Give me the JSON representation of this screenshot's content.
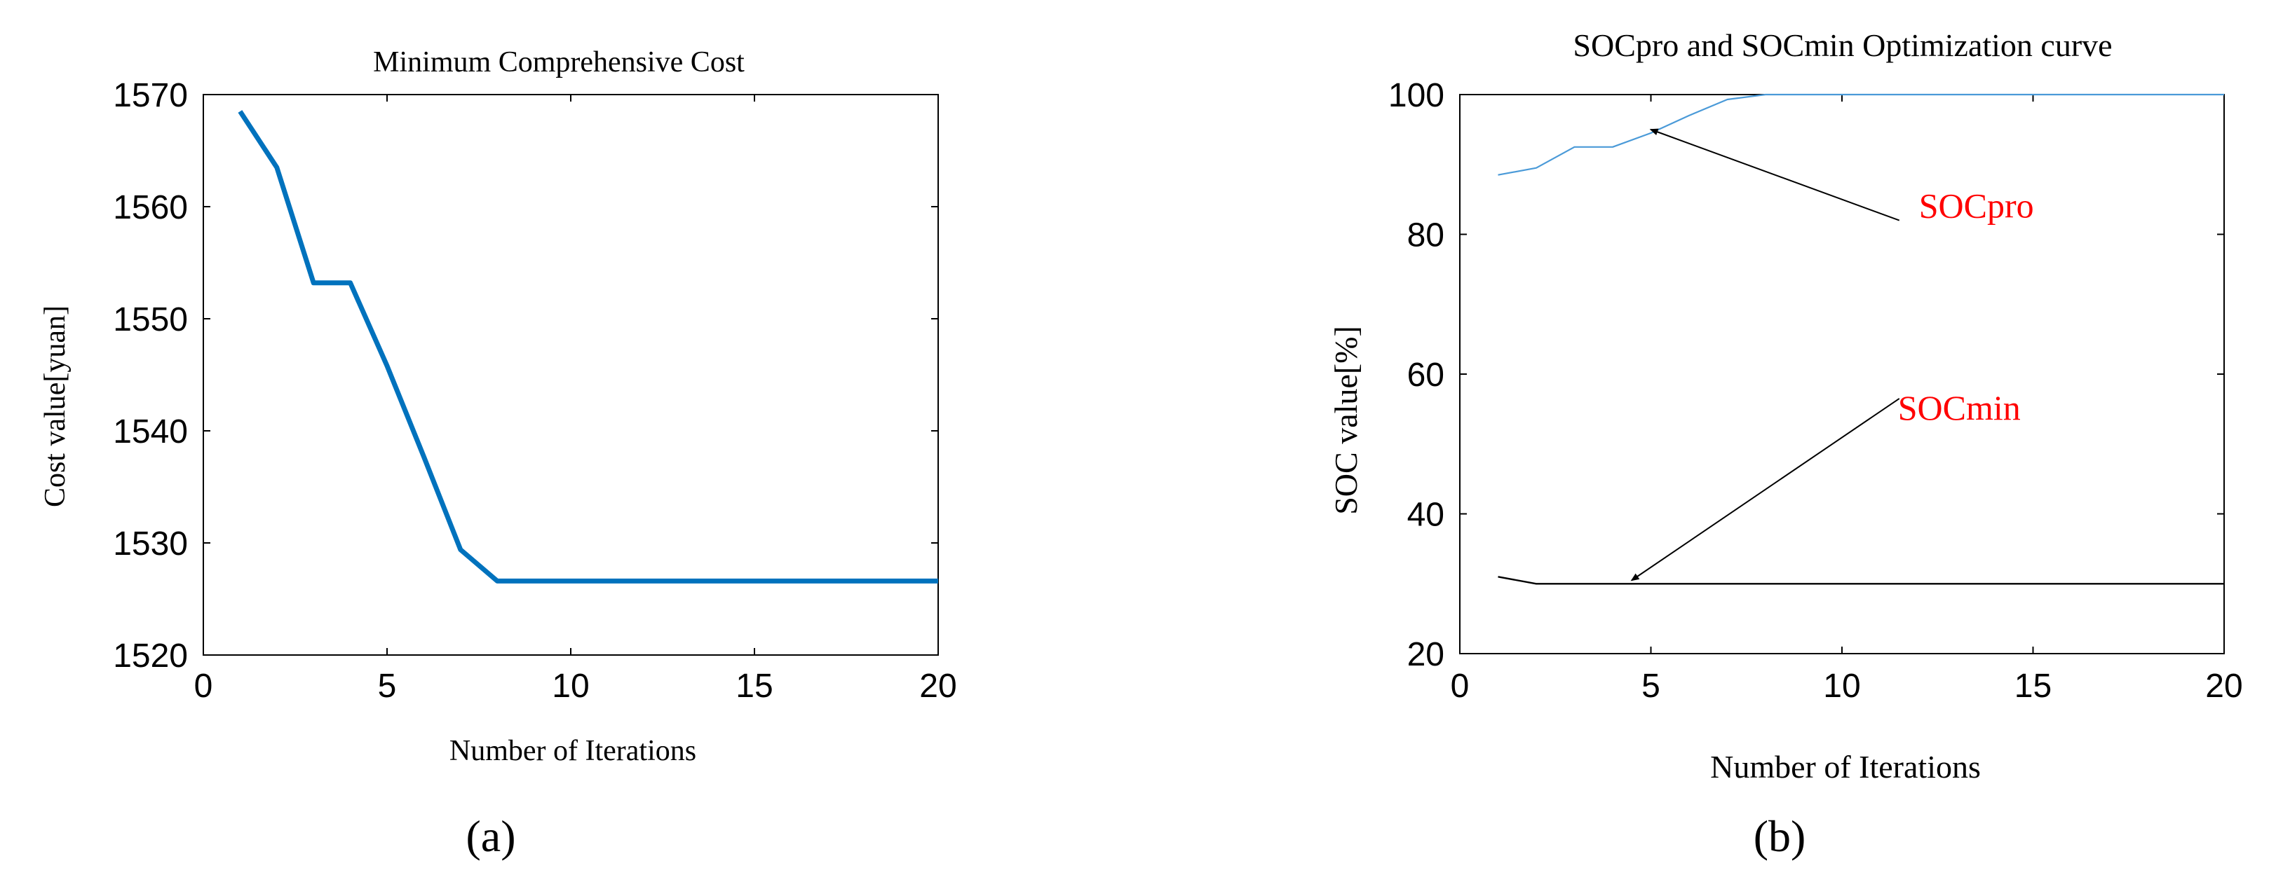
{
  "colors": {
    "series_a": "#0072BD",
    "socpro": "#4A9AD8",
    "socmin": "#000000",
    "annotation_text": "#FF0000",
    "axis": "#000000"
  },
  "chart_data": [
    {
      "type": "line",
      "panel_label": "(a)",
      "title": "Minimum Comprehensive Cost",
      "xlabel": "Number of Iterations",
      "ylabel": "Cost value[yuan]",
      "xlim": [
        0,
        20
      ],
      "ylim": [
        1520,
        1570
      ],
      "xticks": [
        0,
        5,
        10,
        15,
        20
      ],
      "yticks": [
        1520,
        1530,
        1540,
        1550,
        1560,
        1570
      ],
      "grid": false,
      "series": [
        {
          "name": "Comprehensive cost",
          "color": "#0072BD",
          "x": [
            1,
            2,
            3,
            4,
            5,
            6,
            7,
            8,
            9,
            10,
            11,
            12,
            13,
            14,
            15,
            16,
            17,
            18,
            19,
            20
          ],
          "values": [
            1568.5,
            1563.5,
            1553.2,
            1553.2,
            1545.8,
            1537.7,
            1529.4,
            1526.6,
            1526.6,
            1526.6,
            1526.6,
            1526.6,
            1526.6,
            1526.6,
            1526.6,
            1526.6,
            1526.6,
            1526.6,
            1526.6,
            1526.6
          ]
        }
      ]
    },
    {
      "type": "line",
      "panel_label": "(b)",
      "title": "SOCpro and SOCmin Optimization curve",
      "xlabel": "Number of Iterations",
      "ylabel": "SOC value[%]",
      "xlim": [
        0,
        20
      ],
      "ylim": [
        20,
        100
      ],
      "xticks": [
        0,
        5,
        10,
        15,
        20
      ],
      "yticks": [
        20,
        40,
        60,
        80,
        100
      ],
      "grid": false,
      "series": [
        {
          "name": "SOCpro",
          "color": "#4A9AD8",
          "x": [
            1,
            2,
            3,
            4,
            5,
            6,
            7,
            8,
            9,
            10,
            11,
            12,
            13,
            14,
            15,
            16,
            17,
            18,
            19,
            20
          ],
          "values": [
            88.5,
            89.5,
            92.5,
            92.5,
            94.5,
            97.0,
            99.3,
            100,
            100,
            100,
            100,
            100,
            100,
            100,
            100,
            100,
            100,
            100,
            100,
            100
          ]
        },
        {
          "name": "SOCmin",
          "color": "#000000",
          "x": [
            1,
            2,
            3,
            4,
            5,
            6,
            7,
            8,
            9,
            10,
            11,
            12,
            13,
            14,
            15,
            16,
            17,
            18,
            19,
            20
          ],
          "values": [
            31,
            30,
            30,
            30,
            30,
            30,
            30,
            30,
            30,
            30,
            30,
            30,
            30,
            30,
            30,
            30,
            30,
            30,
            30,
            30
          ]
        }
      ],
      "annotations": [
        {
          "text": "SOCpro",
          "arrow_to": [
            5,
            95
          ],
          "arrow_from": [
            11.5,
            82
          ]
        },
        {
          "text": "SOCmin",
          "arrow_to": [
            4.5,
            30.5
          ],
          "arrow_from": [
            11.5,
            56.5
          ]
        }
      ]
    }
  ]
}
